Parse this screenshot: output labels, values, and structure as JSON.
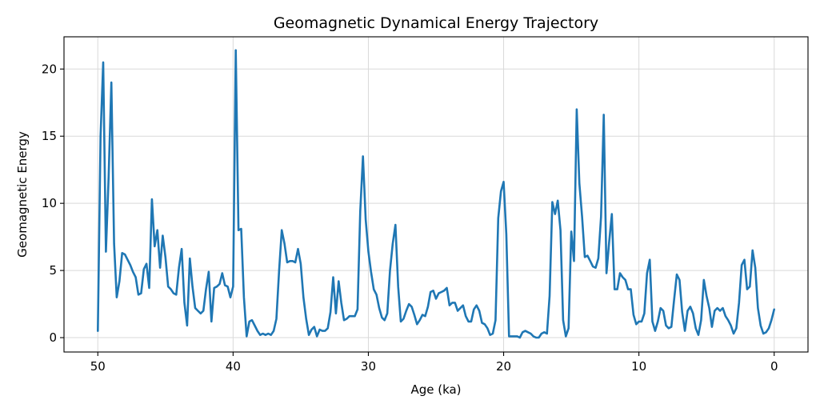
{
  "chart_data": {
    "type": "line",
    "title": "Geomagnetic Dynamical Energy Trajectory",
    "xlabel": "Age (ka)",
    "ylabel": "Geomagnetic Energy",
    "xlim": [
      52.5,
      -2.5
    ],
    "ylim": [
      -1.07,
      22.4
    ],
    "xticks": [
      50,
      40,
      30,
      20,
      10,
      0
    ],
    "yticks": [
      0,
      5,
      10,
      15,
      20
    ],
    "grid": true,
    "color": "#1f77b4",
    "series": [
      {
        "name": "Geomagnetic Energy",
        "x": [
          50.0,
          49.8,
          49.6,
          49.4,
          49.2,
          49.0,
          48.8,
          48.6,
          48.4,
          48.2,
          48.0,
          47.8,
          47.6,
          47.4,
          47.2,
          47.0,
          46.8,
          46.6,
          46.4,
          46.2,
          46.0,
          45.8,
          45.6,
          45.4,
          45.2,
          45.0,
          44.8,
          44.6,
          44.4,
          44.2,
          44.0,
          43.8,
          43.6,
          43.4,
          43.2,
          43.0,
          42.8,
          42.6,
          42.4,
          42.2,
          42.0,
          41.8,
          41.6,
          41.4,
          41.2,
          41.0,
          40.8,
          40.6,
          40.4,
          40.2,
          40.0,
          39.8,
          39.6,
          39.4,
          39.2,
          39.0,
          38.8,
          38.6,
          38.4,
          38.2,
          38.0,
          37.8,
          37.6,
          37.4,
          37.2,
          37.0,
          36.8,
          36.6,
          36.4,
          36.2,
          36.0,
          35.8,
          35.6,
          35.4,
          35.2,
          35.0,
          34.8,
          34.6,
          34.4,
          34.2,
          34.0,
          33.8,
          33.6,
          33.4,
          33.2,
          33.0,
          32.8,
          32.6,
          32.4,
          32.2,
          32.0,
          31.8,
          31.6,
          31.4,
          31.2,
          31.0,
          30.8,
          30.6,
          30.4,
          30.2,
          30.0,
          29.8,
          29.6,
          29.4,
          29.2,
          29.0,
          28.8,
          28.6,
          28.4,
          28.2,
          28.0,
          27.8,
          27.6,
          27.4,
          27.2,
          27.0,
          26.8,
          26.6,
          26.4,
          26.2,
          26.0,
          25.8,
          25.6,
          25.4,
          25.2,
          25.0,
          24.8,
          24.6,
          24.4,
          24.2,
          24.0,
          23.8,
          23.6,
          23.4,
          23.2,
          23.0,
          22.8,
          22.6,
          22.4,
          22.2,
          22.0,
          21.8,
          21.6,
          21.4,
          21.2,
          21.0,
          20.8,
          20.6,
          20.4,
          20.2,
          20.0,
          19.8,
          19.6,
          19.4,
          19.2,
          19.0,
          18.8,
          18.6,
          18.4,
          18.2,
          18.0,
          17.8,
          17.6,
          17.4,
          17.2,
          17.0,
          16.8,
          16.6,
          16.4,
          16.2,
          16.0,
          15.8,
          15.6,
          15.4,
          15.2,
          15.0,
          14.8,
          14.6,
          14.4,
          14.2,
          14.0,
          13.8,
          13.6,
          13.4,
          13.2,
          13.0,
          12.8,
          12.6,
          12.4,
          12.2,
          12.0,
          11.8,
          11.6,
          11.4,
          11.2,
          11.0,
          10.8,
          10.6,
          10.4,
          10.2,
          10.0,
          9.8,
          9.6,
          9.4,
          9.2,
          9.0,
          8.8,
          8.6,
          8.4,
          8.2,
          8.0,
          7.8,
          7.6,
          7.4,
          7.2,
          7.0,
          6.8,
          6.6,
          6.4,
          6.2,
          6.0,
          5.8,
          5.6,
          5.4,
          5.2,
          5.0,
          4.8,
          4.6,
          4.4,
          4.2,
          4.0,
          3.8,
          3.6,
          3.4,
          3.2,
          3.0,
          2.8,
          2.6,
          2.4,
          2.2,
          2.0,
          1.8,
          1.6,
          1.4,
          1.2,
          1.0,
          0.8,
          0.6,
          0.4,
          0.2,
          0.0
        ],
        "y": [
          0.5,
          15.0,
          20.5,
          6.4,
          12.0,
          19.0,
          7.0,
          3.0,
          4.2,
          6.3,
          6.2,
          5.8,
          5.4,
          4.9,
          4.5,
          3.2,
          3.3,
          5.1,
          5.5,
          3.7,
          10.3,
          6.8,
          8.0,
          5.2,
          7.6,
          6.0,
          3.8,
          3.6,
          3.3,
          3.2,
          5.2,
          6.6,
          2.6,
          0.9,
          5.9,
          3.8,
          2.2,
          2.0,
          1.8,
          2.0,
          3.6,
          4.9,
          1.2,
          3.7,
          3.8,
          4.0,
          4.8,
          3.9,
          3.8,
          3.0,
          3.8,
          21.4,
          8.0,
          8.1,
          3.0,
          0.1,
          1.2,
          1.3,
          0.9,
          0.5,
          0.2,
          0.3,
          0.2,
          0.3,
          0.2,
          0.5,
          1.4,
          5.0,
          8.0,
          7.0,
          5.6,
          5.7,
          5.7,
          5.6,
          6.6,
          5.5,
          3.0,
          1.4,
          0.2,
          0.6,
          0.8,
          0.1,
          0.6,
          0.5,
          0.5,
          0.7,
          1.9,
          4.5,
          1.8,
          4.2,
          2.6,
          1.3,
          1.4,
          1.6,
          1.6,
          1.6,
          2.1,
          9.4,
          13.5,
          8.8,
          6.4,
          4.9,
          3.6,
          3.2,
          2.2,
          1.5,
          1.3,
          1.8,
          5.0,
          7.0,
          8.4,
          3.8,
          1.2,
          1.4,
          2.0,
          2.5,
          2.3,
          1.7,
          1.0,
          1.3,
          1.7,
          1.6,
          2.3,
          3.4,
          3.5,
          2.9,
          3.3,
          3.4,
          3.5,
          3.7,
          2.4,
          2.6,
          2.6,
          2.0,
          2.2,
          2.4,
          1.6,
          1.2,
          1.2,
          2.1,
          2.4,
          2.0,
          1.1,
          1.0,
          0.7,
          0.2,
          0.3,
          1.3,
          8.9,
          10.9,
          11.6,
          7.7,
          0.1,
          0.1,
          0.1,
          0.1,
          0.0,
          0.4,
          0.5,
          0.4,
          0.3,
          0.1,
          0.0,
          0.0,
          0.3,
          0.4,
          0.3,
          3.1,
          10.1,
          9.2,
          10.2,
          8.0,
          1.3,
          0.1,
          0.7,
          7.9,
          5.7,
          17.0,
          11.5,
          9.0,
          6.0,
          6.1,
          5.7,
          5.3,
          5.2,
          5.9,
          9.0,
          16.6,
          4.8,
          7.1,
          9.2,
          3.6,
          3.6,
          4.8,
          4.5,
          4.3,
          3.6,
          3.6,
          1.7,
          1.0,
          1.2,
          1.2,
          1.8,
          4.8,
          5.8,
          1.2,
          0.5,
          1.2,
          2.2,
          2.0,
          0.9,
          0.7,
          0.8,
          2.8,
          4.7,
          4.3,
          1.9,
          0.5,
          2.0,
          2.3,
          1.8,
          0.7,
          0.2,
          1.3,
          4.3,
          3.1,
          2.2,
          0.8,
          2.0,
          2.2,
          2.0,
          2.2,
          1.6,
          1.3,
          0.9,
          0.3,
          0.7,
          2.6,
          5.4,
          5.8,
          3.6,
          3.8,
          6.5,
          5.2,
          2.2,
          0.9,
          0.3,
          0.4,
          0.7,
          1.3,
          2.1
        ]
      }
    ]
  }
}
